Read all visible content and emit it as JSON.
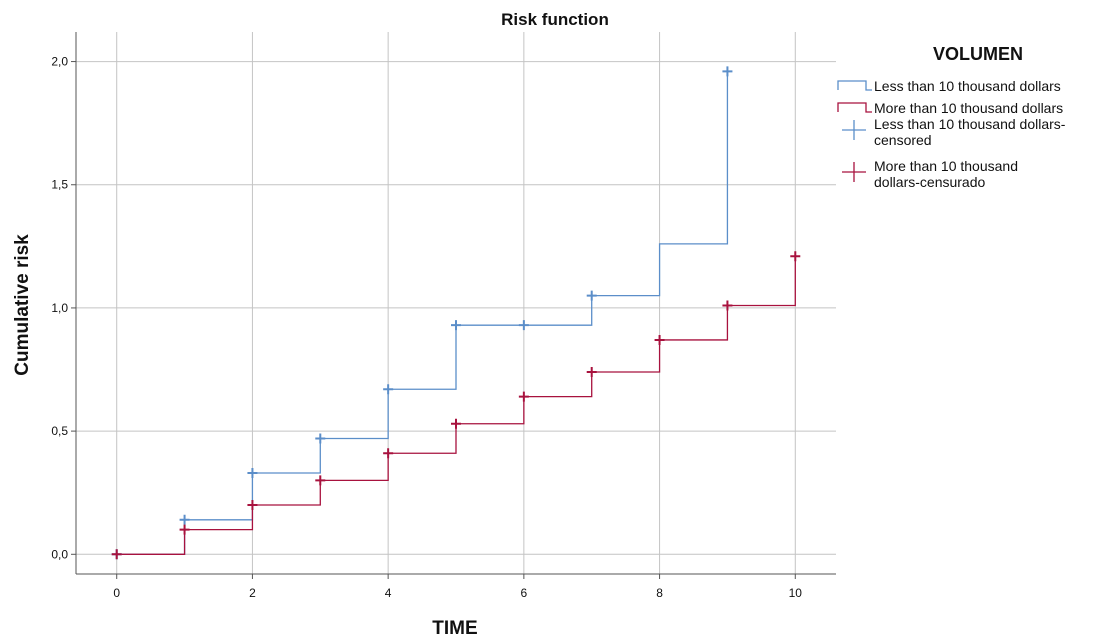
{
  "chart_data": {
    "type": "line",
    "title": "Risk function",
    "xlabel": "TIME",
    "ylabel": "Cumulative risk",
    "xlim": [
      -0.6,
      10.6
    ],
    "ylim": [
      -0.08,
      2.12
    ],
    "x_ticks": [
      0,
      2,
      4,
      6,
      8,
      10
    ],
    "x_tick_labels": [
      "0",
      "2",
      "4",
      "6",
      "8",
      "10"
    ],
    "y_ticks": [
      0,
      0.5,
      1,
      1.5,
      2
    ],
    "y_tick_labels": [
      "0,0",
      "0,5",
      "1,0",
      "1,5",
      "2,0"
    ],
    "grid": true,
    "legend_title": "VOLUMEN",
    "legend_position": "right",
    "series": [
      {
        "name": "Less than 10 thousand dollars",
        "color": "#5b8ec9",
        "step": "post",
        "x": [
          0,
          1,
          2,
          3,
          4,
          5,
          6,
          7,
          8,
          9
        ],
        "y": [
          0,
          0.14,
          0.33,
          0.47,
          0.67,
          0.93,
          0.93,
          1.05,
          1.26,
          1.96
        ]
      },
      {
        "name": "More than 10 thousand dollars",
        "color": "#a8123e",
        "step": "post",
        "x": [
          0,
          1,
          2,
          3,
          4,
          5,
          6,
          7,
          8,
          9,
          10
        ],
        "y": [
          0,
          0.1,
          0.2,
          0.3,
          0.41,
          0.53,
          0.64,
          0.74,
          0.87,
          1.01,
          1.21
        ]
      }
    ],
    "censored": [
      {
        "name": "Less than 10 thousand dollars-censored",
        "color": "#5b8ec9",
        "x": [
          0,
          1,
          2,
          3,
          4,
          5,
          6,
          7,
          9
        ],
        "y": [
          0,
          0.14,
          0.33,
          0.47,
          0.67,
          0.93,
          0.93,
          1.05,
          1.96
        ]
      },
      {
        "name": "More than 10 thousand dollars-censurado",
        "color": "#a8123e",
        "x": [
          0,
          1,
          2,
          3,
          4,
          5,
          6,
          7,
          8,
          9,
          10
        ],
        "y": [
          0,
          0.1,
          0.2,
          0.3,
          0.41,
          0.53,
          0.64,
          0.74,
          0.87,
          1.01,
          1.21
        ]
      }
    ],
    "legend": [
      {
        "kind": "line",
        "color": "#5b8ec9",
        "lines": [
          "Less than 10 thousand dollars"
        ]
      },
      {
        "kind": "line",
        "color": "#a8123e",
        "lines": [
          "More than 10 thousand dollars"
        ]
      },
      {
        "kind": "cross",
        "color": "#5b8ec9",
        "lines": [
          "Less than 10 thousand dollars-",
          "censored"
        ]
      },
      {
        "kind": "cross",
        "color": "#a8123e",
        "lines": [
          "More than 10 thousand",
          "dollars-censurado"
        ]
      }
    ]
  }
}
